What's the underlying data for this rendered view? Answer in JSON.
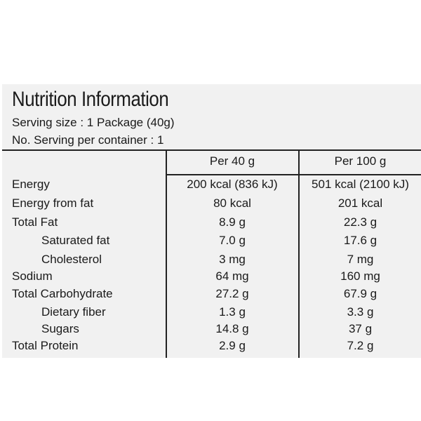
{
  "title": "Nutrition Information",
  "serving_size": "Serving size : 1 Package (40g)",
  "servings_per_container": "No. Serving per container : 1",
  "columns": [
    "Per 40 g",
    "Per 100 g"
  ],
  "rows": [
    {
      "label": "Energy",
      "per40": "200 kcal (836 kJ)",
      "per100": "501 kcal (2100 kJ)"
    },
    {
      "label": "Energy from fat",
      "per40": "80 kcal",
      "per100": "201 kcal"
    },
    {
      "label": "Total Fat",
      "per40": "8.9 g",
      "per100": "22.3 g"
    },
    {
      "label": "Saturated fat",
      "per40": "7.0 g",
      "per100": "17.6 g"
    },
    {
      "label": "Cholesterol",
      "per40": "3 mg",
      "per100": "7 mg"
    },
    {
      "label": "Sodium",
      "per40": "64 mg",
      "per100": "160 mg"
    },
    {
      "label": "Total Carbohydrate",
      "per40": "27.2 g",
      "per100": "67.9 g"
    },
    {
      "label": "Dietary fiber",
      "per40": "1.3 g",
      "per100": "3.3 g"
    },
    {
      "label": "Sugars",
      "per40": "14.8 g",
      "per100": "37 g"
    },
    {
      "label": "Total Protein",
      "per40": "2.9 g",
      "per100": "7.2 g"
    }
  ]
}
